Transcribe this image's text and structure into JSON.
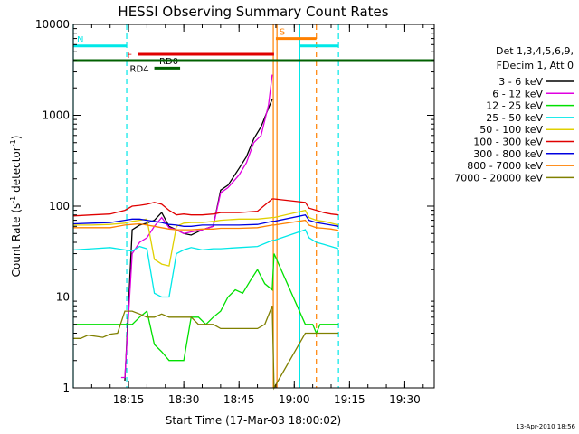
{
  "chart_data": {
    "type": "line",
    "title": "HESSI Observing Summary Count Rates",
    "xlabel": "Start Time (17-Mar-03 18:00:02)",
    "ylabel": "Count Rate (s⁻¹ detector⁻¹)",
    "ylabel_parts": {
      "main": "Count Rate (s",
      "sup1": "-1",
      "mid": " detector",
      "sup2": "-1",
      "end": ")"
    },
    "footer_date": "13-Apr-2010 18:56",
    "y_scale": "log",
    "ylim": [
      1,
      10000
    ],
    "xlim_minutes": [
      0,
      98
    ],
    "x_ticks": [
      {
        "label": "18:15",
        "minute": 15
      },
      {
        "label": "18:30",
        "minute": 30
      },
      {
        "label": "18:45",
        "minute": 45
      },
      {
        "label": "19:00",
        "minute": 60
      },
      {
        "label": "19:15",
        "minute": 75
      },
      {
        "label": "19:30",
        "minute": 90
      }
    ],
    "y_ticks": [
      {
        "label": "1",
        "value": 1
      },
      {
        "label": "10",
        "value": 10
      },
      {
        "label": "100",
        "value": 100
      },
      {
        "label": "1000",
        "value": 1000
      },
      {
        "label": "10000",
        "value": 10000
      }
    ],
    "legend": {
      "header1": "Det 1,3,4,5,6,9,",
      "header2": "FDecim 1, Att 0",
      "placement": "right"
    },
    "series": [
      {
        "name": "3 - 6 keV",
        "color": "#000000",
        "x": [
          0,
          5,
          10,
          14,
          16,
          18,
          20,
          22,
          24,
          26,
          28,
          30,
          32,
          35,
          38,
          40,
          42,
          45,
          47,
          49,
          51,
          53,
          54
        ],
        "y": [
          null,
          null,
          null,
          1.2,
          55,
          62,
          65,
          70,
          85,
          60,
          55,
          50,
          48,
          55,
          60,
          150,
          170,
          260,
          350,
          550,
          750,
          1200,
          1500
        ]
      },
      {
        "name": "6 - 12 keV",
        "color": "#e000e0",
        "x": [
          13,
          14,
          16,
          18,
          20,
          22,
          24,
          26,
          28,
          30,
          32,
          35,
          38,
          40,
          42,
          45,
          47,
          49,
          51,
          53,
          54
        ],
        "y": [
          1.3,
          1.3,
          30,
          40,
          45,
          60,
          75,
          58,
          55,
          50,
          52,
          55,
          60,
          140,
          160,
          220,
          300,
          500,
          600,
          1300,
          2800
        ]
      },
      {
        "name": "12 - 25 keV",
        "color": "#00e000",
        "x": [
          0,
          2,
          4,
          6,
          8,
          10,
          12,
          14,
          16,
          18,
          20,
          22,
          24,
          26,
          28,
          30,
          32,
          34,
          36,
          38,
          40,
          42,
          44,
          46,
          48,
          50,
          52,
          54,
          54.5,
          63,
          64,
          65,
          66,
          67,
          68,
          69,
          70,
          71,
          72
        ],
        "y": [
          5,
          5,
          5,
          5,
          5,
          5,
          5,
          5,
          5,
          6,
          7,
          3,
          2.5,
          2,
          2,
          2,
          6,
          6,
          5,
          6,
          7,
          10,
          12,
          11,
          15,
          20,
          14,
          12,
          30,
          5,
          5,
          5,
          4,
          5,
          5,
          5,
          5,
          5,
          5
        ]
      },
      {
        "name": "25 - 50 keV",
        "color": "#00e8e8",
        "x": [
          0,
          5,
          10,
          14,
          16,
          18,
          20,
          22,
          24,
          26,
          28,
          30,
          32,
          35,
          38,
          40,
          45,
          50,
          54,
          54.5,
          63,
          64,
          66,
          68,
          70,
          72
        ],
        "y": [
          33,
          34,
          35,
          33,
          32,
          36,
          34,
          11,
          10,
          10,
          30,
          33,
          35,
          33,
          34,
          34,
          35,
          36,
          42,
          42,
          55,
          45,
          40,
          38,
          36,
          34
        ]
      },
      {
        "name": "50 - 100 keV",
        "color": "#e0d000",
        "x": [
          0,
          5,
          10,
          14,
          16,
          18,
          20,
          22,
          24,
          26,
          28,
          30,
          32,
          35,
          38,
          40,
          45,
          50,
          54,
          54.5,
          63,
          64,
          66,
          68,
          70,
          72
        ],
        "y": [
          62,
          62,
          63,
          65,
          68,
          70,
          72,
          26,
          23,
          22,
          60,
          65,
          66,
          66,
          68,
          70,
          72,
          72,
          75,
          75,
          90,
          75,
          70,
          68,
          65,
          62
        ]
      },
      {
        "name": "100 - 300 keV",
        "color": "#e00000",
        "x": [
          0,
          5,
          10,
          14,
          16,
          18,
          20,
          22,
          24,
          26,
          28,
          30,
          32,
          35,
          38,
          40,
          45,
          50,
          54,
          54.5,
          63,
          64,
          66,
          68,
          70,
          72
        ],
        "y": [
          78,
          80,
          82,
          90,
          100,
          102,
          105,
          110,
          105,
          90,
          80,
          82,
          80,
          80,
          82,
          85,
          85,
          88,
          120,
          120,
          110,
          95,
          90,
          85,
          82,
          80
        ]
      },
      {
        "name": "300 - 800 keV",
        "color": "#0000e0",
        "x": [
          0,
          5,
          10,
          14,
          16,
          18,
          20,
          22,
          24,
          26,
          28,
          30,
          32,
          35,
          38,
          40,
          45,
          50,
          54,
          54.5,
          63,
          64,
          66,
          68,
          70,
          72
        ],
        "y": [
          64,
          65,
          66,
          70,
          72,
          72,
          70,
          68,
          66,
          63,
          62,
          60,
          60,
          62,
          62,
          62,
          62,
          63,
          68,
          68,
          80,
          70,
          66,
          64,
          62,
          60
        ]
      },
      {
        "name": "800 - 7000 keV",
        "color": "#ff8000",
        "x": [
          0,
          5,
          10,
          14,
          16,
          18,
          20,
          22,
          24,
          26,
          28,
          30,
          32,
          35,
          38,
          40,
          45,
          50,
          54,
          54.5,
          63,
          64,
          66,
          68,
          70,
          72
        ],
        "y": [
          58,
          58,
          58,
          62,
          63,
          64,
          62,
          60,
          58,
          56,
          55,
          55,
          55,
          56,
          56,
          57,
          57,
          58,
          62,
          62,
          70,
          62,
          58,
          57,
          56,
          54
        ]
      },
      {
        "name": "7000 - 20000 keV",
        "color": "#808000",
        "x": [
          0,
          2,
          4,
          6,
          8,
          10,
          12,
          14,
          16,
          18,
          20,
          22,
          24,
          26,
          28,
          30,
          32,
          34,
          36,
          38,
          40,
          42,
          44,
          46,
          48,
          50,
          52,
          54,
          54.5,
          63,
          64,
          66,
          68,
          70,
          72
        ],
        "y": [
          3.5,
          3.5,
          3.8,
          3.7,
          3.6,
          3.9,
          4,
          7,
          7,
          6.5,
          6,
          6,
          6.5,
          6,
          6,
          6,
          6,
          5,
          5,
          5,
          4.5,
          4.5,
          4.5,
          4.5,
          4.5,
          4.5,
          5,
          8,
          1,
          4,
          4,
          4,
          4,
          4,
          4
        ]
      }
    ],
    "flag_bars": [
      {
        "label": "N",
        "color": "#00e8e8",
        "y": 5800,
        "x0": 0,
        "x1": 14.5
      },
      {
        "label": "",
        "color": "#00e8e8",
        "y": 5800,
        "x0": 61.5,
        "x1": 72
      },
      {
        "label": "F",
        "color": "#e00000",
        "y": 4700,
        "x0": 17.5,
        "x1": 54.5
      },
      {
        "label": "S",
        "color": "#ff8000",
        "y": 7000,
        "x0": 55,
        "x1": 66
      },
      {
        "label": "RD0",
        "color": "#006000",
        "y": 4000,
        "x0": 21,
        "x1": 29
      },
      {
        "label": "RD4",
        "color": "#006000",
        "y": 3300,
        "x0": 22,
        "x1": 29
      },
      {
        "label": "",
        "color": "#006000",
        "y": 4000,
        "x0": 0,
        "x1": 98
      }
    ],
    "vertical_lines": [
      {
        "color": "#00e8e8",
        "x": 0,
        "style": "solid"
      },
      {
        "color": "#00e8e8",
        "x": 14.5,
        "style": "dashed"
      },
      {
        "color": "#ff8000",
        "x": 54.3,
        "style": "solid"
      },
      {
        "color": "#ff8000",
        "x": 55.3,
        "style": "solid"
      },
      {
        "color": "#00e8e8",
        "x": 61.5,
        "style": "solid"
      },
      {
        "color": "#ff8000",
        "x": 66,
        "style": "dashed"
      },
      {
        "color": "#00e8e8",
        "x": 72,
        "style": "dashed"
      }
    ]
  }
}
